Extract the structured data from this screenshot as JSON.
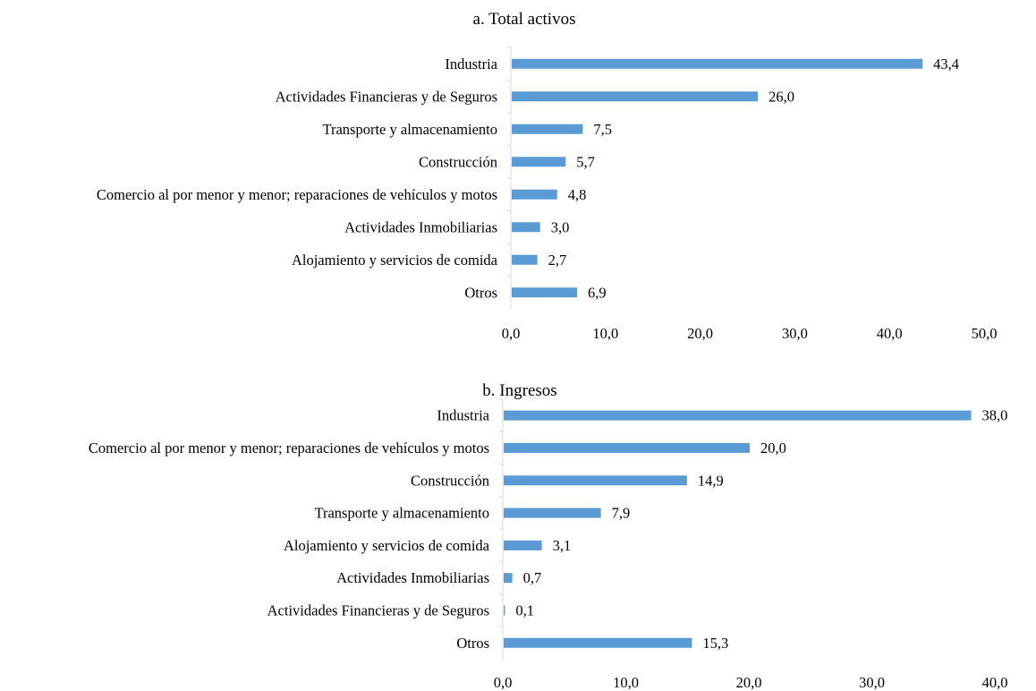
{
  "colors": {
    "bar": "#5b9bd5",
    "axis": "#d9d9d9",
    "text": "#000000"
  },
  "chart_data": [
    {
      "type": "bar",
      "orientation": "horizontal",
      "title": "a. Total activos",
      "categories": [
        "Industria",
        "Actividades Financieras y de Seguros",
        "Transporte y almacenamiento",
        "Construcción",
        "Comercio al por menor y menor; reparaciones de vehículos y motos",
        "Actividades Inmobiliarias",
        "Alojamiento y servicios de comida",
        "Otros"
      ],
      "values": [
        43.4,
        26.0,
        7.5,
        5.7,
        4.8,
        3.0,
        2.7,
        6.9
      ],
      "value_labels": [
        "43,4",
        "26,0",
        "7,5",
        "5,7",
        "4,8",
        "3,0",
        "2,7",
        "6,9"
      ],
      "xlim": [
        0,
        50
      ],
      "xticks": [
        "0,0",
        "10,0",
        "20,0",
        "30,0",
        "40,0",
        "50,0"
      ],
      "grid": false
    },
    {
      "type": "bar",
      "orientation": "horizontal",
      "title": "b. Ingresos",
      "categories": [
        "Industria",
        "Comercio al por menor y menor; reparaciones de vehículos y motos",
        "Construcción",
        "Transporte y almacenamiento",
        "Alojamiento y servicios de comida",
        "Actividades Inmobiliarias",
        "Actividades Financieras y de Seguros",
        "Otros"
      ],
      "values": [
        38.0,
        20.0,
        14.9,
        7.9,
        3.1,
        0.7,
        0.1,
        15.3
      ],
      "value_labels": [
        "38,0",
        "20,0",
        "14,9",
        "7,9",
        "3,1",
        "0,7",
        "0,1",
        "15,3"
      ],
      "xlim": [
        0,
        40
      ],
      "xticks": [
        "0,0",
        "10,0",
        "20,0",
        "30,0",
        "40,0"
      ],
      "grid": false
    }
  ]
}
